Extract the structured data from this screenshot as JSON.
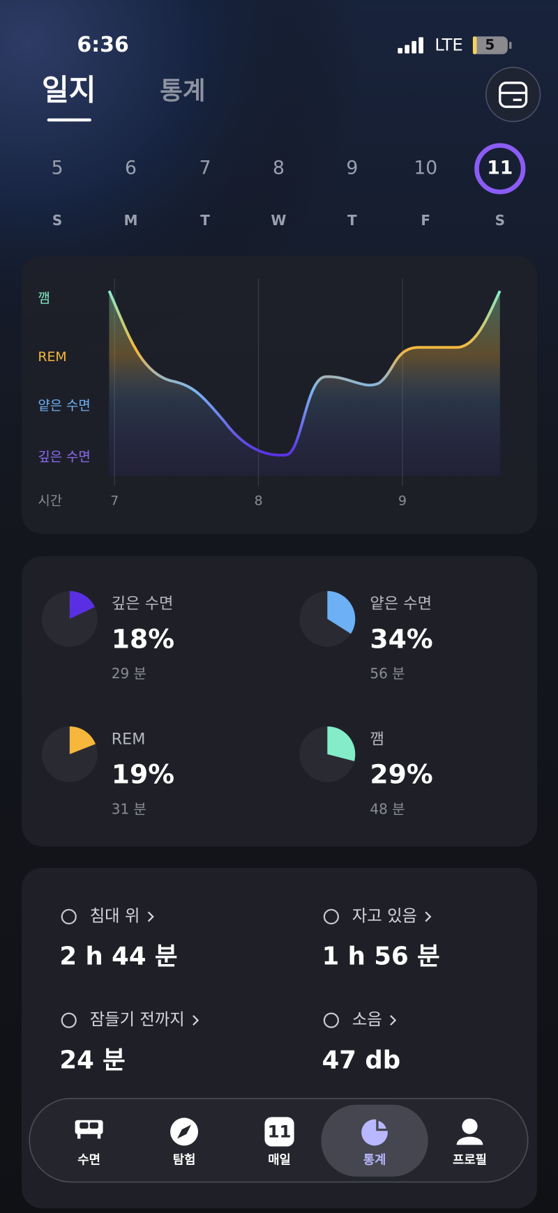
{
  "status": {
    "time": "6:36",
    "network": "LTE",
    "battery": "5"
  },
  "tabs": [
    "일지",
    "통계"
  ],
  "week": {
    "days": [
      "5",
      "6",
      "7",
      "8",
      "9",
      "10",
      "11"
    ],
    "weekdays": [
      "S",
      "M",
      "T",
      "W",
      "T",
      "F",
      "S"
    ]
  },
  "hypnogram": {
    "stages": [
      "깸",
      "REM",
      "얕은 수면",
      "깊은 수면"
    ],
    "axis_label": "시간",
    "hours": [
      "7",
      "8",
      "9"
    ]
  },
  "stages": [
    {
      "name": "깊은 수면",
      "percent": 18,
      "percent_label": "18%",
      "duration": "29 분",
      "color": "#5a2fe3"
    },
    {
      "name": "얕은 수면",
      "percent": 34,
      "percent_label": "34%",
      "duration": "56 분",
      "color": "#6db0f6"
    },
    {
      "name": "REM",
      "percent": 19,
      "percent_label": "19%",
      "duration": "31 분",
      "color": "#f6b73c"
    },
    {
      "name": "깸",
      "percent": 29,
      "percent_label": "29%",
      "duration": "48 분",
      "color": "#84ecc9"
    }
  ],
  "stats": [
    {
      "label": "침대 위",
      "value": "2 h 44 분"
    },
    {
      "label": "자고 있음",
      "value": "1 h 56 분"
    },
    {
      "label": "잠들기 전까지",
      "value": "24 분"
    },
    {
      "label": "소음",
      "value": "47 db"
    }
  ],
  "nav": {
    "items": [
      "수면",
      "탐험",
      "매일",
      "통계",
      "프로필"
    ],
    "daily_badge": "11"
  }
}
